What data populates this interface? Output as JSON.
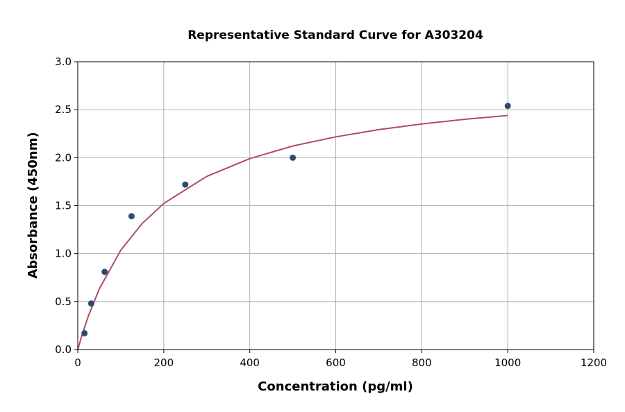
{
  "chart_data": {
    "type": "scatter",
    "title": "Representative Standard Curve for A303204",
    "xlabel": "Concentration (pg/ml)",
    "ylabel": "Absorbance (450nm)",
    "xlim": [
      0,
      1200
    ],
    "ylim": [
      0,
      3.0
    ],
    "xticks": [
      "0",
      "200",
      "400",
      "600",
      "800",
      "1000",
      "1200"
    ],
    "yticks": [
      "0.0",
      "0.5",
      "1.0",
      "1.5",
      "2.0",
      "2.5",
      "3.0"
    ],
    "grid": true,
    "points": {
      "x": [
        15.625,
        31.25,
        62.5,
        125,
        250,
        500,
        1000
      ],
      "y": [
        0.17,
        0.48,
        0.81,
        1.39,
        1.72,
        2.0,
        2.54
      ],
      "color": "#2d4b6e"
    },
    "fit_curve": {
      "x": [
        0,
        10,
        25,
        50,
        100,
        150,
        200,
        300,
        400,
        500,
        600,
        700,
        800,
        900,
        1000
      ],
      "y": [
        0,
        0.153,
        0.355,
        0.632,
        1.036,
        1.316,
        1.523,
        1.805,
        1.99,
        2.122,
        2.217,
        2.292,
        2.351,
        2.4,
        2.44
      ],
      "color": "#b04a6e"
    }
  }
}
